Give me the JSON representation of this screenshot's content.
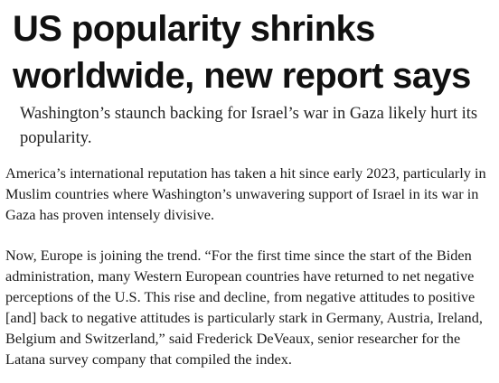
{
  "article": {
    "headline": "US popularity shrinks worldwide, new report says",
    "subheadline": "Washington’s staunch backing for Israel’s war in Gaza likely hurt its popularity.",
    "paragraphs": [
      "America’s international reputation has taken a hit since early 2023, particularly in Muslim countries where Washington’s unwavering support of Israel in its war in Gaza has proven intensely divisive.",
      "Now, Europe is joining the trend. “For the first time since the start of the Biden administration, many Western European countries have returned to net negative perceptions of the U.S. This rise and decline, from negative attitudes to positive [and] back to negative attitudes is particularly stark in Germany, Austria, Ireland, Belgium and Switzerland,” said Frederick DeVeaux, senior researcher for the Latana survey company that compiled the index."
    ]
  }
}
